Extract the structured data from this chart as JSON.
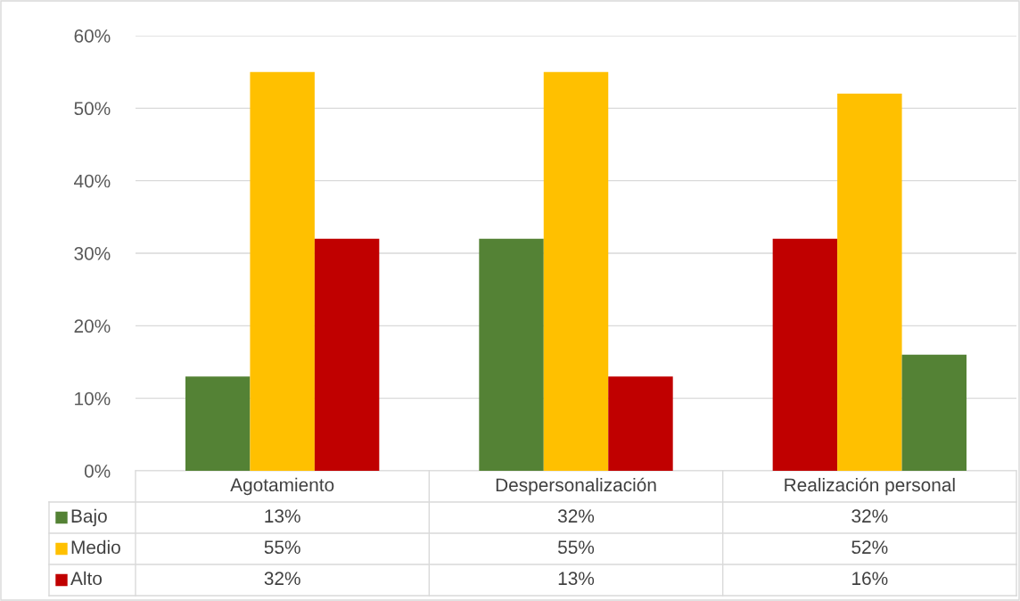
{
  "chart_data": {
    "type": "bar",
    "categories": [
      "Agotamiento",
      "Despersonalización",
      "Realización personal"
    ],
    "series": [
      {
        "name": "Bajo",
        "color": "#548235",
        "colors": [
          "#548235",
          "#548235",
          "#c00000"
        ],
        "values": [
          13,
          32,
          32
        ],
        "value_labels": [
          "13%",
          "32%",
          "32%"
        ]
      },
      {
        "name": "Medio",
        "color": "#ffc000",
        "colors": [
          "#ffc000",
          "#ffc000",
          "#ffc000"
        ],
        "values": [
          55,
          55,
          52
        ],
        "value_labels": [
          "55%",
          "55%",
          "52%"
        ]
      },
      {
        "name": "Alto",
        "color": "#c00000",
        "colors": [
          "#c00000",
          "#c00000",
          "#548235"
        ],
        "values": [
          32,
          13,
          16
        ],
        "value_labels": [
          "32%",
          "13%",
          "16%"
        ]
      }
    ],
    "ylim": [
      0,
      60
    ],
    "yticks": [
      {
        "value": 0,
        "label": "0%"
      },
      {
        "value": 10,
        "label": "10%"
      },
      {
        "value": 20,
        "label": "20%"
      },
      {
        "value": 30,
        "label": "30%"
      },
      {
        "value": 40,
        "label": "40%"
      },
      {
        "value": 50,
        "label": "50%"
      },
      {
        "value": 60,
        "label": "60%"
      }
    ],
    "grid": "y",
    "legend": "bottom"
  }
}
